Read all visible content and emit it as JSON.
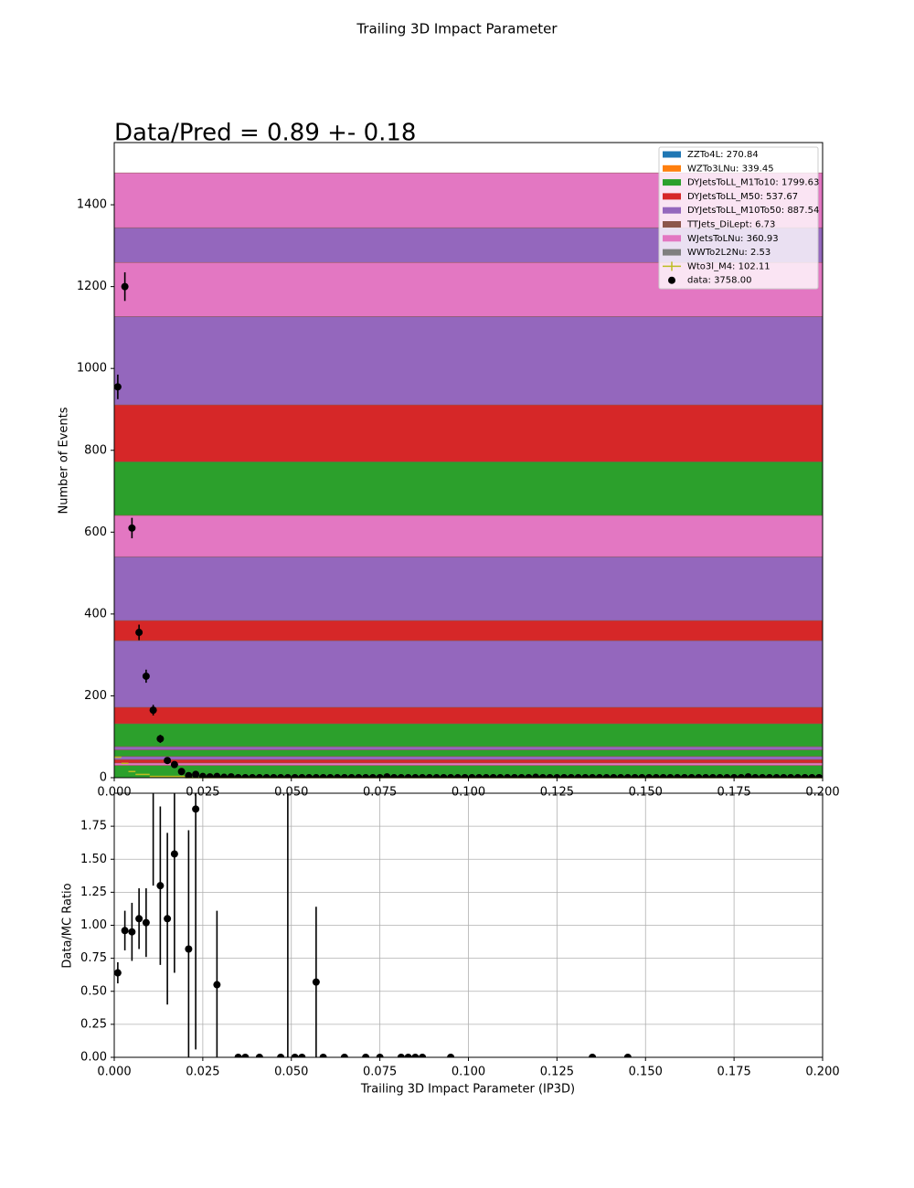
{
  "chart_data": [
    {
      "type": "stack",
      "title": "Trailing 3D Impact Parameter",
      "annotation": "Data/Pred = 0.89 +- 0.18",
      "y_label": "Number of Events",
      "xlim": [
        0,
        0.2
      ],
      "xticks": [
        {
          "value": 0,
          "label": "0.000"
        },
        {
          "value": 0.025,
          "label": "0.025"
        },
        {
          "value": 0.05,
          "label": "0.050"
        },
        {
          "value": 0.075,
          "label": "0.075"
        },
        {
          "value": 0.1,
          "label": "0.100"
        },
        {
          "value": 0.125,
          "label": "0.125"
        },
        {
          "value": 0.15,
          "label": "0.150"
        },
        {
          "value": 0.175,
          "label": "0.175"
        },
        {
          "value": 0.2,
          "label": "0.200"
        }
      ],
      "ylim": [
        0,
        1552
      ],
      "yticks": [
        0,
        200,
        400,
        600,
        800,
        1000,
        1200,
        1400
      ],
      "legend": "upper right",
      "legend_entries": [
        {
          "label": "ZZTo4L: 270.84",
          "color": "#1f77b4",
          "kind": "patch"
        },
        {
          "label": "WZTo3LNu: 339.45",
          "color": "#ff7f0e",
          "kind": "patch"
        },
        {
          "label": "DYJetsToLL_M1To10: 1799.63",
          "color": "#2ca02c",
          "kind": "patch"
        },
        {
          "label": "DYJetsToLL_M50: 537.67",
          "color": "#d62728",
          "kind": "patch"
        },
        {
          "label": "DYJetsToLL_M10To50: 887.54",
          "color": "#9467bd",
          "kind": "patch"
        },
        {
          "label": "TTJets_DiLept: 6.73",
          "color": "#8c564b",
          "kind": "patch"
        },
        {
          "label": "WJetsToLNu: 360.93",
          "color": "#e377c2",
          "kind": "patch"
        },
        {
          "label": "WWTo2L2Nu: 2.53",
          "color": "#7f7f7f",
          "kind": "patch"
        },
        {
          "label": "Wto3l_M4: 102.11",
          "color": "#bcbd22",
          "kind": "line"
        },
        {
          "label": "data: 3758.00",
          "color": "#000000",
          "kind": "point"
        }
      ],
      "segments": [
        {
          "color": "#2ca02c",
          "value": 30
        },
        {
          "color": "#e377c2",
          "value": 6
        },
        {
          "color": "#d62728",
          "value": 8
        },
        {
          "color": "#9467bd",
          "value": 8
        },
        {
          "color": "#2ca02c",
          "value": 16
        },
        {
          "color": "#9467bd",
          "value": 8
        },
        {
          "color": "#2ca02c",
          "value": 56
        },
        {
          "color": "#d62728",
          "value": 40
        },
        {
          "color": "#9467bd",
          "value": 163
        },
        {
          "color": "#d62728",
          "value": 49
        },
        {
          "color": "#9467bd",
          "value": 156
        },
        {
          "color": "#e377c2",
          "value": 101
        },
        {
          "color": "#2ca02c",
          "value": 131
        },
        {
          "color": "#d62728",
          "value": 139
        },
        {
          "color": "#9467bd",
          "value": 216
        },
        {
          "color": "#e377c2",
          "value": 132
        },
        {
          "color": "#9467bd",
          "value": 85
        },
        {
          "color": "#e377c2",
          "value": 134
        }
      ],
      "signal": {
        "color": "#bcbd22",
        "bins": [
          0,
          0.002,
          0.004,
          0.006,
          0.01,
          0.02,
          0.2
        ],
        "values": [
          50,
          35,
          15,
          8,
          3,
          0
        ]
      },
      "data": {
        "color": "#000000",
        "x": [
          0.001,
          0.003,
          0.005,
          0.007,
          0.009,
          0.011,
          0.013,
          0.015,
          0.017,
          0.019,
          0.021,
          0.023,
          0.025,
          0.027,
          0.029,
          0.031,
          0.033,
          0.035,
          0.037,
          0.039,
          0.041,
          0.043,
          0.045,
          0.047,
          0.049,
          0.051,
          0.053,
          0.055,
          0.057,
          0.059,
          0.061,
          0.063,
          0.065,
          0.067,
          0.069,
          0.071,
          0.073,
          0.075,
          0.077,
          0.079,
          0.081,
          0.083,
          0.085,
          0.087,
          0.089,
          0.091,
          0.093,
          0.095,
          0.097,
          0.099,
          0.101,
          0.103,
          0.105,
          0.107,
          0.109,
          0.111,
          0.113,
          0.115,
          0.117,
          0.119,
          0.121,
          0.123,
          0.125,
          0.127,
          0.129,
          0.131,
          0.133,
          0.135,
          0.137,
          0.139,
          0.141,
          0.143,
          0.145,
          0.147,
          0.149,
          0.151,
          0.153,
          0.155,
          0.157,
          0.159,
          0.161,
          0.163,
          0.165,
          0.167,
          0.169,
          0.171,
          0.173,
          0.175,
          0.177,
          0.179,
          0.181,
          0.183,
          0.185,
          0.187,
          0.189,
          0.191,
          0.193,
          0.195,
          0.197,
          0.199
        ],
        "values": [
          955,
          1200,
          610,
          355,
          248,
          165,
          95,
          42,
          32,
          15,
          5,
          8,
          3,
          2,
          3,
          1,
          2,
          0,
          0,
          0,
          0,
          0,
          0,
          0,
          0,
          0,
          0,
          0,
          0,
          0,
          0,
          0,
          0,
          0,
          0,
          0,
          0,
          0,
          2,
          0,
          0,
          0,
          0,
          0,
          0,
          0,
          0,
          0,
          0,
          0,
          0,
          0,
          0,
          0,
          0,
          0,
          0,
          0,
          0,
          1,
          0,
          0,
          0,
          0,
          0,
          0,
          0,
          0,
          0,
          0,
          0,
          0,
          0,
          0,
          0,
          0,
          0,
          0,
          0,
          0,
          0,
          0,
          0,
          0,
          0,
          0,
          0,
          0,
          0,
          2,
          0,
          0,
          0,
          0,
          0,
          0,
          0,
          0,
          0,
          0
        ],
        "errors": [
          30,
          35,
          25,
          19,
          16,
          13,
          10,
          6.5,
          5.7,
          3.9,
          2.2,
          2.8,
          1.7,
          1.4,
          1.7,
          1,
          1.4,
          0,
          0,
          0,
          0,
          0,
          0,
          0,
          0,
          0,
          0,
          0,
          0,
          0,
          0,
          0,
          0,
          0,
          0,
          0,
          0,
          0,
          1.4,
          0,
          0,
          0,
          0,
          0,
          0,
          0,
          0,
          0,
          0,
          0,
          0,
          0,
          0,
          0,
          0,
          0,
          0,
          0,
          0,
          1,
          0,
          0,
          0,
          0,
          0,
          0,
          0,
          0,
          0,
          0,
          0,
          0,
          0,
          0,
          0,
          0,
          0,
          0,
          0,
          0,
          0,
          0,
          0,
          0,
          0,
          0,
          0,
          0,
          0,
          1.4,
          0,
          0,
          0,
          0,
          0,
          0,
          0,
          0,
          0,
          0
        ]
      }
    },
    {
      "type": "ratio",
      "x_label": "Trailing 3D Impact Parameter (IP3D)",
      "y_label": "Data/MC Ratio",
      "color": "#000000",
      "grid": true,
      "xlim": [
        0,
        0.2
      ],
      "xticks": [
        {
          "value": 0,
          "label": "0.000"
        },
        {
          "value": 0.025,
          "label": "0.025"
        },
        {
          "value": 0.05,
          "label": "0.050"
        },
        {
          "value": 0.075,
          "label": "0.075"
        },
        {
          "value": 0.1,
          "label": "0.100"
        },
        {
          "value": 0.125,
          "label": "0.125"
        },
        {
          "value": 0.15,
          "label": "0.150"
        },
        {
          "value": 0.175,
          "label": "0.175"
        },
        {
          "value": 0.2,
          "label": "0.200"
        }
      ],
      "ylim": [
        0,
        2.0
      ],
      "yticks": [
        {
          "value": 0,
          "label": "0.00"
        },
        {
          "value": 0.25,
          "label": "0.25"
        },
        {
          "value": 0.5,
          "label": "0.50"
        },
        {
          "value": 0.75,
          "label": "0.75"
        },
        {
          "value": 1,
          "label": "1.00"
        },
        {
          "value": 1.25,
          "label": "1.25"
        },
        {
          "value": 1.5,
          "label": "1.50"
        },
        {
          "value": 1.75,
          "label": "1.75"
        }
      ],
      "x": [
        0.001,
        0.003,
        0.005,
        0.007,
        0.009,
        0.011,
        0.013,
        0.015,
        0.017,
        0.021,
        0.023,
        0.029,
        0.035,
        0.037,
        0.041,
        0.047,
        0.049,
        0.051,
        0.053,
        0.057,
        0.059,
        0.065,
        0.071,
        0.075,
        0.081,
        0.083,
        0.085,
        0.087,
        0.095,
        0.135,
        0.145
      ],
      "values": [
        0.64,
        0.96,
        0.95,
        1.05,
        1.02,
        2.3,
        1.3,
        1.05,
        1.54,
        0.82,
        1.88,
        0.55,
        0,
        0,
        0,
        0,
        3.0,
        0,
        0,
        0.57,
        0,
        0,
        0,
        0,
        0,
        0,
        0,
        0,
        0,
        0,
        0
      ],
      "errors": [
        0.08,
        0.15,
        0.22,
        0.23,
        0.26,
        1.0,
        0.6,
        0.65,
        0.9,
        0.9,
        1.82,
        0.56,
        0,
        0,
        0,
        0,
        3.0,
        0,
        0,
        0.57,
        0,
        0,
        0,
        0,
        0,
        0,
        0,
        0,
        0,
        0,
        0
      ]
    }
  ]
}
